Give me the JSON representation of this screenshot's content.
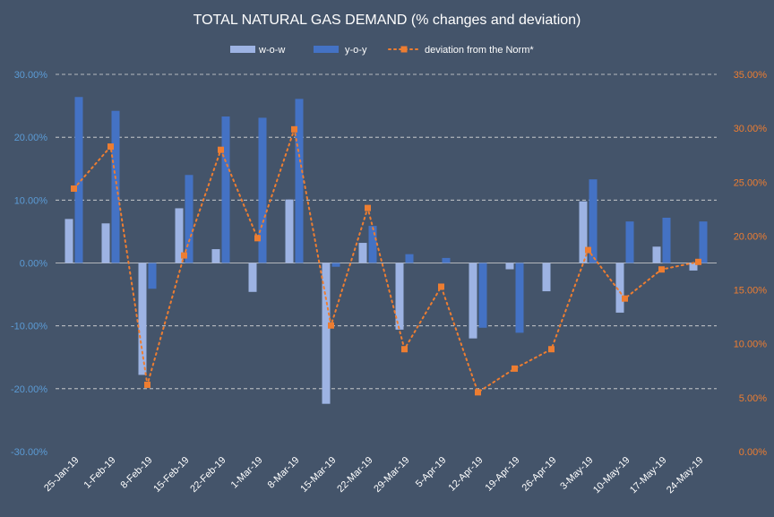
{
  "chart_data": {
    "type": "bar",
    "title": "TOTAL NATURAL GAS DEMAND (% changes and deviation)",
    "categories": [
      "25-Jan-19",
      "1-Feb-19",
      "8-Feb-19",
      "15-Feb-19",
      "22-Feb-19",
      "1-Mar-19",
      "8-Mar-19",
      "15-Mar-19",
      "22-Mar-19",
      "29-Mar-19",
      "5-Apr-19",
      "12-Apr-19",
      "19-Apr-19",
      "26-Apr-19",
      "3-May-19",
      "10-May-19",
      "17-May-19",
      "24-May-19"
    ],
    "series": [
      {
        "name": "w-o-w",
        "type": "bar",
        "axis": "left",
        "color": "#9db3e3",
        "values": [
          7.0,
          6.3,
          -17.8,
          8.7,
          2.2,
          -4.6,
          10.1,
          -22.4,
          3.2,
          -10.6,
          0.0,
          -12.0,
          -1.0,
          -4.5,
          9.8,
          -7.9,
          2.6,
          -1.2
        ]
      },
      {
        "name": "y-o-y",
        "type": "bar",
        "axis": "left",
        "color": "#4472c4",
        "values": [
          26.4,
          24.2,
          -4.1,
          14.0,
          23.3,
          23.1,
          26.1,
          -0.6,
          5.9,
          1.4,
          0.8,
          -10.3,
          -11.1,
          0.0,
          13.3,
          6.6,
          7.2,
          6.6
        ]
      },
      {
        "name": "deviation from the Norm*",
        "type": "line",
        "axis": "right",
        "color": "#ed7d31",
        "values": [
          24.4,
          28.3,
          6.2,
          18.2,
          28.0,
          19.8,
          29.9,
          11.7,
          22.6,
          9.5,
          15.3,
          5.5,
          7.7,
          9.5,
          18.7,
          14.2,
          16.9,
          17.6
        ]
      }
    ],
    "y_left": {
      "min": -30,
      "max": 30,
      "step": 10,
      "ticks": [
        "-30.00%",
        "-20.00%",
        "-10.00%",
        "0.00%",
        "10.00%",
        "20.00%",
        "30.00%"
      ]
    },
    "y_right": {
      "min": 0,
      "max": 35,
      "step": 5,
      "ticks": [
        "0.00%",
        "5.00%",
        "10.00%",
        "15.00%",
        "20.00%",
        "25.00%",
        "30.00%",
        "35.00%"
      ]
    },
    "grid": true,
    "legend_position": "top-center",
    "colors": {
      "background": "#44546a",
      "axis_left_text": "#5b9bd5",
      "axis_right_text": "#ed7d31",
      "text": "#ffffff",
      "gridline": "#d9d9d9"
    }
  }
}
